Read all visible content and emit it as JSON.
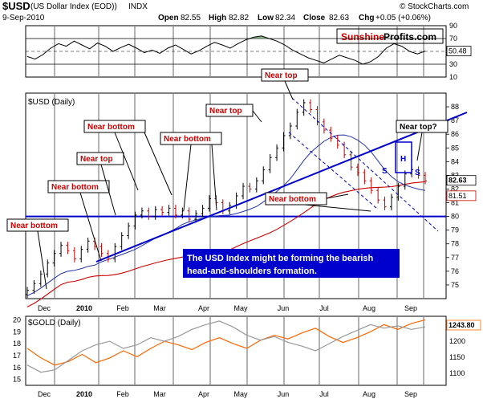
{
  "header": {
    "symbol": "$USD",
    "name": "(US Dollar Index (EOD))",
    "exchange": "INDX",
    "copyright": "© StockCharts.com",
    "date": "9-Sep-2010",
    "open_label": "Open",
    "open": "82.55",
    "high_label": "High",
    "high": "82.82",
    "low_label": "Low",
    "low": "82.34",
    "close_label": "Close",
    "close": "82.63",
    "chg_label": "Chg",
    "chg": "+0.05 (+0.06%)"
  },
  "logo": {
    "part1": "Sunshine",
    "part2": "Profits.com"
  },
  "colors": {
    "price_up": "#000000",
    "price_down": "#cc0000",
    "ma_red": "#cc0000",
    "ma_blue": "#2233aa",
    "trend_blue": "#0000cc",
    "gold": "#ff6600",
    "usd_gray": "#999999",
    "label_red": "#cc0000",
    "note_bg": "#0000cc"
  },
  "chart_data": [
    {
      "type": "line",
      "title": "RSI",
      "ylim": [
        10,
        90
      ],
      "y_ticks": [
        "90",
        "70",
        "50",
        "30",
        "10"
      ],
      "last_value": "50.48",
      "values": [
        42,
        38,
        45,
        55,
        62,
        58,
        66,
        60,
        54,
        63,
        58,
        50,
        56,
        61,
        55,
        48,
        52,
        47,
        55,
        60,
        53,
        46,
        51,
        58,
        64,
        60,
        55,
        62,
        68,
        72,
        74,
        70,
        66,
        60,
        52,
        46,
        40,
        36,
        32,
        38,
        44,
        40,
        36,
        30,
        34,
        42,
        55,
        62,
        58,
        50,
        46,
        50.48
      ]
    },
    {
      "type": "candlestick",
      "title": "$USD (Daily)",
      "ylim": [
        74,
        89
      ],
      "y_ticks": [
        "88",
        "87",
        "86",
        "85",
        "84",
        "83",
        "82",
        "81",
        "80",
        "79",
        "78",
        "77",
        "76",
        "75"
      ],
      "last_value": "82.63",
      "last_value_ma": "81.51",
      "x_ticks": [
        "Dec",
        "2010",
        "Feb",
        "Mar",
        "Apr",
        "May",
        "Jun",
        "Jul",
        "Aug",
        "Sep"
      ],
      "closes": [
        74.6,
        75.1,
        75.8,
        76.6,
        77.3,
        77.9,
        77.5,
        76.9,
        77.6,
        78.2,
        77.8,
        77.3,
        76.9,
        77.8,
        78.6,
        79.3,
        80.1,
        80.4,
        80.0,
        80.5,
        80.3,
        80.6,
        80.1,
        80.4,
        79.8,
        80.2,
        80.6,
        81.3,
        81.0,
        80.4,
        80.8,
        81.5,
        82.2,
        82.0,
        82.6,
        83.4,
        84.3,
        85.0,
        85.9,
        86.6,
        87.6,
        88.3,
        87.8,
        86.9,
        86.3,
        85.7,
        85.2,
        84.5,
        83.6,
        83.2,
        82.6,
        81.9,
        81.2,
        80.7,
        81.4,
        82.2,
        83.1,
        83.4,
        83.0,
        82.6
      ],
      "horizontal_level": 80
    },
    {
      "type": "line",
      "title": "$GOLD (Daily)",
      "ylim": [
        14.5,
        20.3
      ],
      "y_ticks": [
        "20",
        "19",
        "18",
        "17",
        "16",
        "15"
      ],
      "y2_ticks": [
        "1250",
        "1200",
        "1150",
        "1100"
      ],
      "last_value": "1243.80",
      "series": [
        {
          "name": "$GOLD",
          "values": [
            17.6,
            16.8,
            16.2,
            16.5,
            17.1,
            16.4,
            16.8,
            17.4,
            16.9,
            17.6,
            18.2,
            17.9,
            17.5,
            18.1,
            18.5,
            18.0,
            17.6,
            18.3,
            18.7,
            18.4,
            18.9,
            19.3,
            18.6,
            18.1,
            18.5,
            19.0,
            19.6,
            19.2,
            19.7,
            20.0
          ]
        },
        {
          "name": "$USD",
          "values": [
            16.2,
            15.6,
            15.8,
            16.6,
            17.4,
            17.9,
            18.2,
            17.6,
            17.9,
            18.5,
            18.2,
            18.6,
            19.2,
            19.6,
            19.9,
            19.4,
            18.7,
            18.3,
            18.6,
            18.1,
            17.8,
            17.4,
            18.0,
            18.6,
            19.1,
            19.6,
            19.3,
            19.5,
            19.2,
            19.4
          ]
        }
      ]
    }
  ],
  "annotations": {
    "near_bottom": "Near bottom",
    "near_top": "Near top",
    "near_top_q": "Near top?",
    "s": "S",
    "h": "H",
    "note_line1": "The USD Index might be forming the bearish",
    "note_line2": "head-and-shoulders formation."
  }
}
